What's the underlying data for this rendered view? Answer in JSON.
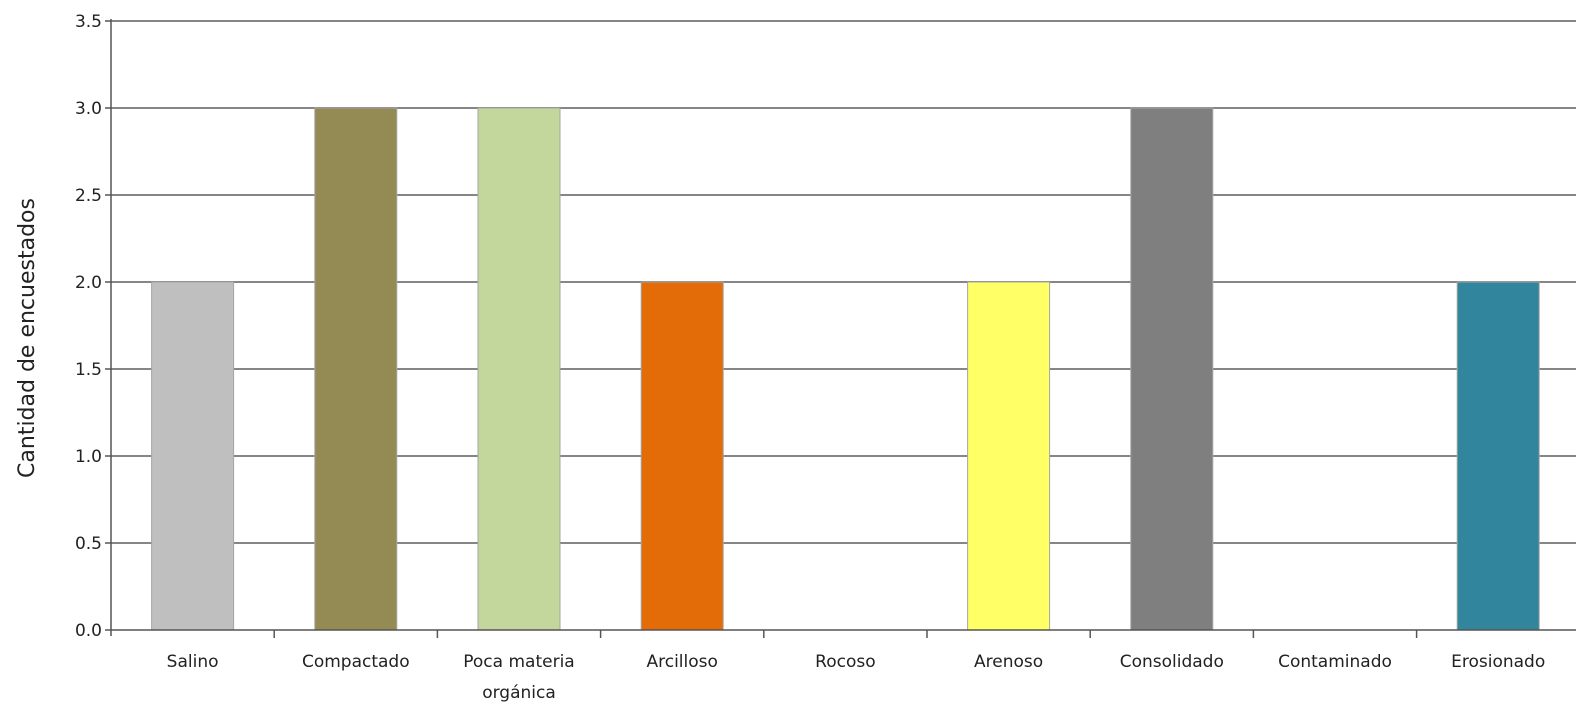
{
  "chart_data": {
    "type": "bar",
    "title": "",
    "xlabel": "",
    "ylabel": "Cantidad de encuestados",
    "ylim": [
      0,
      3.5
    ],
    "yticks": [
      "0.0",
      "0.5",
      "1.0",
      "1.5",
      "2.0",
      "2.5",
      "3.0",
      "3.5"
    ],
    "grid": true,
    "categories": [
      [
        "Salino"
      ],
      [
        "Compactado"
      ],
      [
        "Poca materia",
        "orgánica"
      ],
      [
        "Arcilloso"
      ],
      [
        "Rocoso"
      ],
      [
        "Arenoso"
      ],
      [
        "Consolidado"
      ],
      [
        "Contaminado"
      ],
      [
        "Erosionado"
      ]
    ],
    "values": [
      2,
      3,
      3,
      2,
      0,
      2,
      3,
      0,
      2
    ],
    "colors": [
      "#bfbfbf",
      "#948a54",
      "#c3d69b",
      "#e36c09",
      "#ffffff",
      "#ffff66",
      "#7f7f7f",
      "#ffffff",
      "#31859c"
    ]
  }
}
